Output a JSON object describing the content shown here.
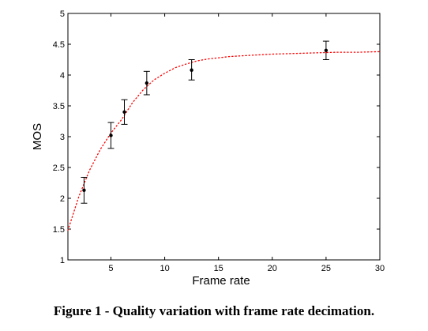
{
  "caption": "Figure 1 - Quality variation with frame rate decimation.",
  "chart_data": {
    "type": "scatter",
    "title": "",
    "xlabel": "Frame rate",
    "ylabel": "MOS",
    "xlim": [
      1,
      30
    ],
    "ylim": [
      1,
      5
    ],
    "xticks": [
      5,
      10,
      15,
      20,
      25,
      30
    ],
    "yticks": [
      1,
      1.5,
      2,
      2.5,
      3,
      3.5,
      4,
      4.5,
      5
    ],
    "grid": false,
    "series": [
      {
        "type": "errorbar",
        "points": [
          {
            "x": 2.5,
            "y": 2.13,
            "low": 1.92,
            "high": 2.34
          },
          {
            "x": 5,
            "y": 3.02,
            "low": 2.81,
            "high": 3.23
          },
          {
            "x": 6.25,
            "y": 3.4,
            "low": 3.2,
            "high": 3.6
          },
          {
            "x": 8.33,
            "y": 3.87,
            "low": 3.68,
            "high": 4.06
          },
          {
            "x": 12.5,
            "y": 4.08,
            "low": 3.92,
            "high": 4.25
          },
          {
            "x": 25,
            "y": 4.4,
            "low": 4.25,
            "high": 4.55
          }
        ],
        "color": "#000000"
      },
      {
        "type": "fit-curve",
        "style": "dotted",
        "color": "#ff0000",
        "x": [
          1,
          2,
          3,
          4,
          5,
          6,
          7,
          8,
          9,
          10,
          11,
          12,
          13,
          14,
          15,
          16,
          18,
          20,
          22,
          24,
          26,
          28,
          30
        ],
        "y": [
          1.48,
          2.02,
          2.45,
          2.79,
          3.06,
          3.28,
          3.55,
          3.76,
          3.92,
          4.03,
          4.12,
          4.18,
          4.23,
          4.26,
          4.28,
          4.3,
          4.32,
          4.34,
          4.35,
          4.36,
          4.37,
          4.37,
          4.38
        ]
      }
    ]
  }
}
